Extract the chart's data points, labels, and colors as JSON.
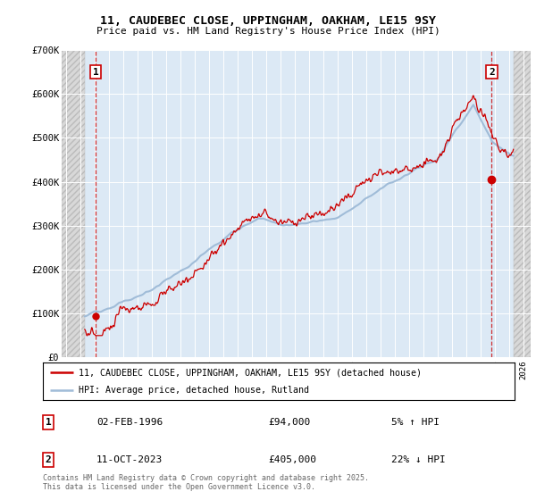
{
  "title": "11, CAUDEBEC CLOSE, UPPINGHAM, OAKHAM, LE15 9SY",
  "subtitle": "Price paid vs. HM Land Registry's House Price Index (HPI)",
  "ylim": [
    0,
    700000
  ],
  "yticks": [
    0,
    100000,
    200000,
    300000,
    400000,
    500000,
    600000,
    700000
  ],
  "ytick_labels": [
    "£0",
    "£100K",
    "£200K",
    "£300K",
    "£400K",
    "£500K",
    "£600K",
    "£700K"
  ],
  "xlim_start": 1993.7,
  "xlim_end": 2026.5,
  "hpi_color": "#a0bcd8",
  "price_color": "#cc0000",
  "bg_color": "#dce9f5",
  "point1_year": 1996.09,
  "point1_price": 94000,
  "point2_year": 2023.78,
  "point2_price": 405000,
  "legend_line1": "11, CAUDEBEC CLOSE, UPPINGHAM, OAKHAM, LE15 9SY (detached house)",
  "legend_line2": "HPI: Average price, detached house, Rutland",
  "annotation1_date": "02-FEB-1996",
  "annotation1_price": "£94,000",
  "annotation1_hpi": "5% ↑ HPI",
  "annotation2_date": "11-OCT-2023",
  "annotation2_price": "£405,000",
  "annotation2_hpi": "22% ↓ HPI",
  "footer": "Contains HM Land Registry data © Crown copyright and database right 2025.\nThis data is licensed under the Open Government Licence v3.0.",
  "hatch_left_end": 1995.3,
  "hatch_right_start": 2025.3
}
